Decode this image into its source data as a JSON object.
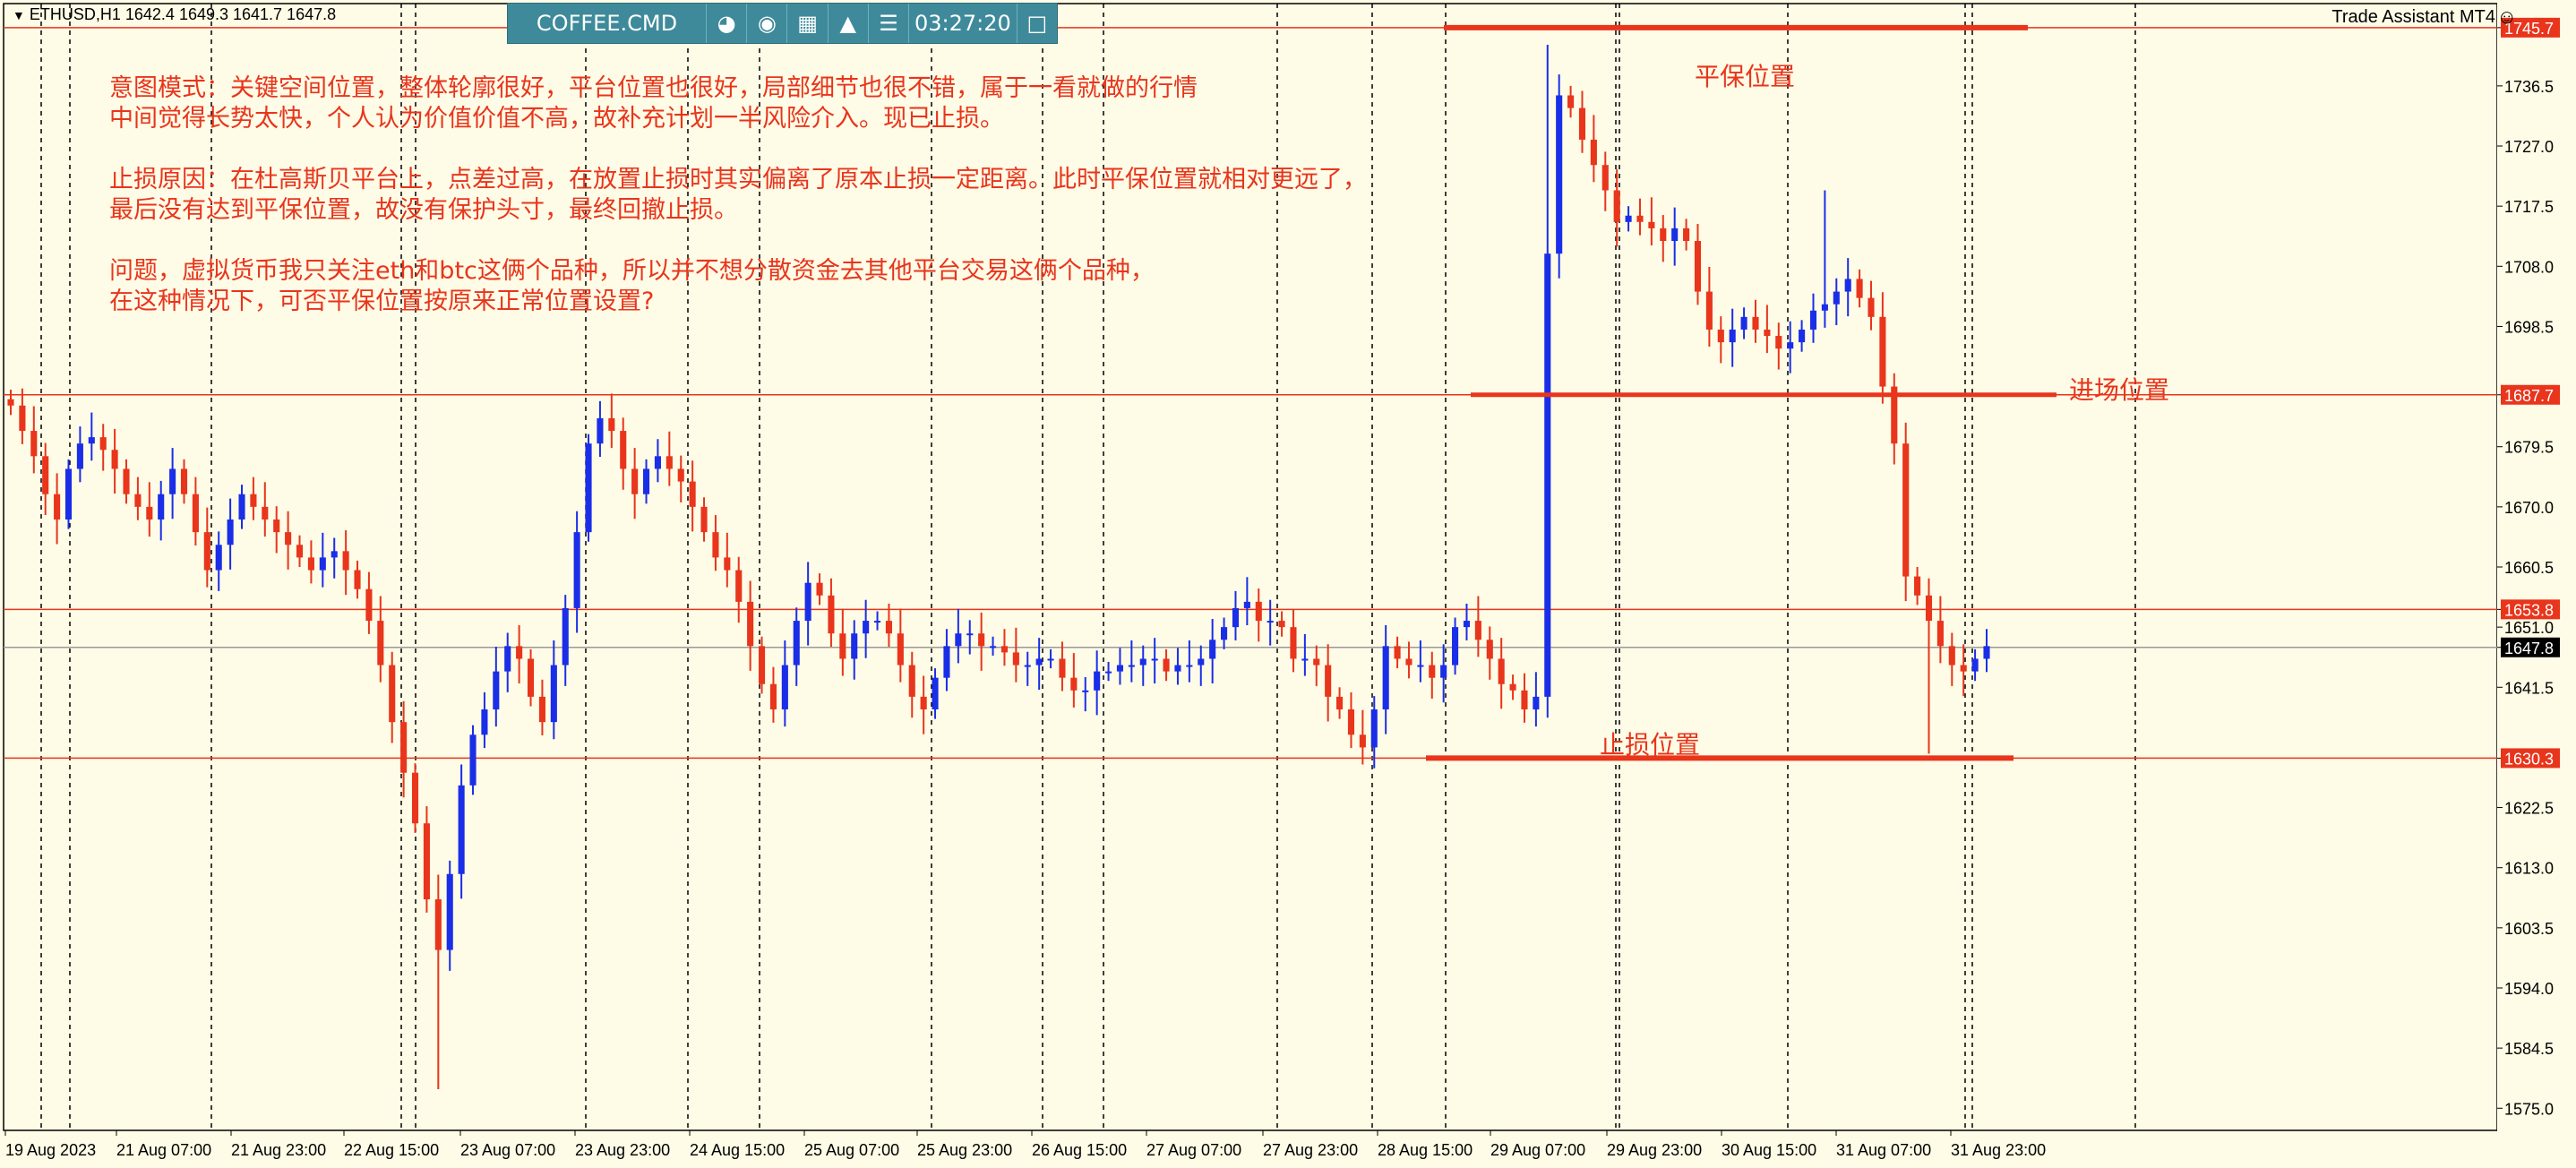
{
  "window": {
    "symbol_info": "ETHUSD,H1  1642.4 1649.3 1641.7 1647.8",
    "brand": "Trade Assistant MT4",
    "brand_icon": "smiley-icon"
  },
  "toolbar": {
    "label": "COFFEE.CMD",
    "time": "03:27:20",
    "icons": [
      "camera-icon",
      "eye-icon",
      "calendar-icon",
      "alarm-icon",
      "menu-icon",
      "window-icon"
    ]
  },
  "annotations": {
    "note_lines": [
      "意图模式：关键空间位置，整体轮廓很好，平台位置也很好，局部细节也很不错，属于一看就做的行情",
      "中间觉得长势太快，个人认为价值价值不高，故补充计划一半风险介入。现已止损。",
      "",
      "止损原因：在杜高斯贝平台上，点差过高，在放置止损时其实偏离了原本止损一定距离。此时平保位置就相对更远了，",
      "最后没有达到平保位置，故没有保护头寸，最终回撤止损。",
      "",
      "问题，虚拟货币我只关注eth和btc这俩个品种，所以并不想分散资金去其他平台交易这俩个品种，",
      "在这种情况下，可否平保位置按原来正常位置设置?"
    ],
    "breakeven_label": "平保位置",
    "entry_label": "进场位置",
    "stoploss_label": "止损位置"
  },
  "chart_data": {
    "type": "candlestick",
    "symbol": "ETHUSD",
    "timeframe": "H1",
    "ohlc_last": {
      "open": 1642.4,
      "high": 1649.3,
      "low": 1641.7,
      "close": 1647.8
    },
    "ylim": [
      1571.5,
      1749.5
    ],
    "y_ticks": [
      1745.7,
      1736.5,
      1727.0,
      1717.5,
      1708.0,
      1698.5,
      1687.7,
      1679.5,
      1670.0,
      1660.5,
      1653.8,
      1651.0,
      1647.8,
      1641.5,
      1630.3,
      1622.5,
      1613.0,
      1603.5,
      1594.0,
      1584.5,
      1575.0
    ],
    "y_tick_labels": [
      "1745.7",
      "1736.5",
      "1727.0",
      "1717.5",
      "1708.0",
      "1698.5",
      "1687.7",
      "1679.5",
      "1670.0",
      "1660.5",
      "1653.8",
      "1651.0",
      "1647.8",
      "1641.5",
      "1630.3",
      "1622.5",
      "1613.0",
      "1603.5",
      "1594.0",
      "1584.5",
      "1575.0"
    ],
    "x_labels": [
      "19 Aug 2023",
      "21 Aug 07:00",
      "21 Aug 23:00",
      "22 Aug 15:00",
      "23 Aug 07:00",
      "23 Aug 23:00",
      "24 Aug 15:00",
      "25 Aug 07:00",
      "25 Aug 23:00",
      "26 Aug 15:00",
      "27 Aug 07:00",
      "27 Aug 23:00",
      "28 Aug 15:00",
      "29 Aug 07:00",
      "29 Aug 23:00",
      "30 Aug 15:00",
      "31 Aug 07:00",
      "31 Aug 23:00"
    ],
    "price_lines": [
      {
        "price": 1745.7,
        "label": "1745.7",
        "color": "#e8351c"
      },
      {
        "price": 1687.7,
        "label": "1687.7",
        "color": "#e8351c"
      },
      {
        "price": 1653.8,
        "label": "1653.8",
        "color": "#e8351c"
      },
      {
        "price": 1647.8,
        "label": "1647.8",
        "color": "#000000"
      },
      {
        "price": 1630.3,
        "label": "1630.3",
        "color": "#e8351c"
      }
    ],
    "close_path": [
      1686,
      1682,
      1678,
      1672,
      1668,
      1676,
      1680,
      1681,
      1679,
      1676,
      1672,
      1670,
      1668,
      1672,
      1676,
      1672,
      1666,
      1660,
      1664,
      1668,
      1672,
      1670,
      1668,
      1666,
      1664,
      1662,
      1660,
      1662,
      1663,
      1660,
      1657,
      1652,
      1645,
      1636,
      1628,
      1620,
      1608,
      1600,
      1612,
      1626,
      1634,
      1638,
      1644,
      1648,
      1646,
      1640,
      1636,
      1645,
      1654,
      1666,
      1680,
      1684,
      1682,
      1676,
      1672,
      1676,
      1678,
      1676,
      1674,
      1670,
      1666,
      1662,
      1660,
      1655,
      1648,
      1642,
      1638,
      1645,
      1652,
      1658,
      1656,
      1650,
      1646,
      1650,
      1652,
      1652,
      1650,
      1645,
      1640,
      1638,
      1643,
      1648,
      1650,
      1650,
      1648,
      1648,
      1647,
      1645,
      1645,
      1646,
      1646,
      1643,
      1641,
      1641,
      1644,
      1644,
      1645,
      1645,
      1646,
      1646,
      1644,
      1645,
      1645,
      1646,
      1649,
      1651,
      1654,
      1655,
      1652,
      1652,
      1651,
      1646,
      1646,
      1645,
      1640,
      1638,
      1634,
      1632,
      1638,
      1648,
      1646,
      1645,
      1645,
      1643,
      1645,
      1651,
      1652,
      1649,
      1646,
      1642,
      1641,
      1638,
      1640,
      1710,
      1735,
      1733,
      1728,
      1724,
      1720,
      1715,
      1716,
      1715,
      1714,
      1712,
      1714,
      1712,
      1704,
      1698,
      1696,
      1698,
      1700,
      1698,
      1697,
      1695,
      1696,
      1698,
      1701,
      1702,
      1704,
      1706,
      1703,
      1700,
      1689,
      1680,
      1659,
      1656,
      1652,
      1648,
      1645,
      1644,
      1646,
      1648
    ]
  },
  "colors": {
    "background": "#fefbe6",
    "bull": "#1a2ee8",
    "bear": "#e8351c",
    "annotation": "#e8351c",
    "grid": "#000000",
    "toolbar_bg": "#3e8a9a"
  }
}
